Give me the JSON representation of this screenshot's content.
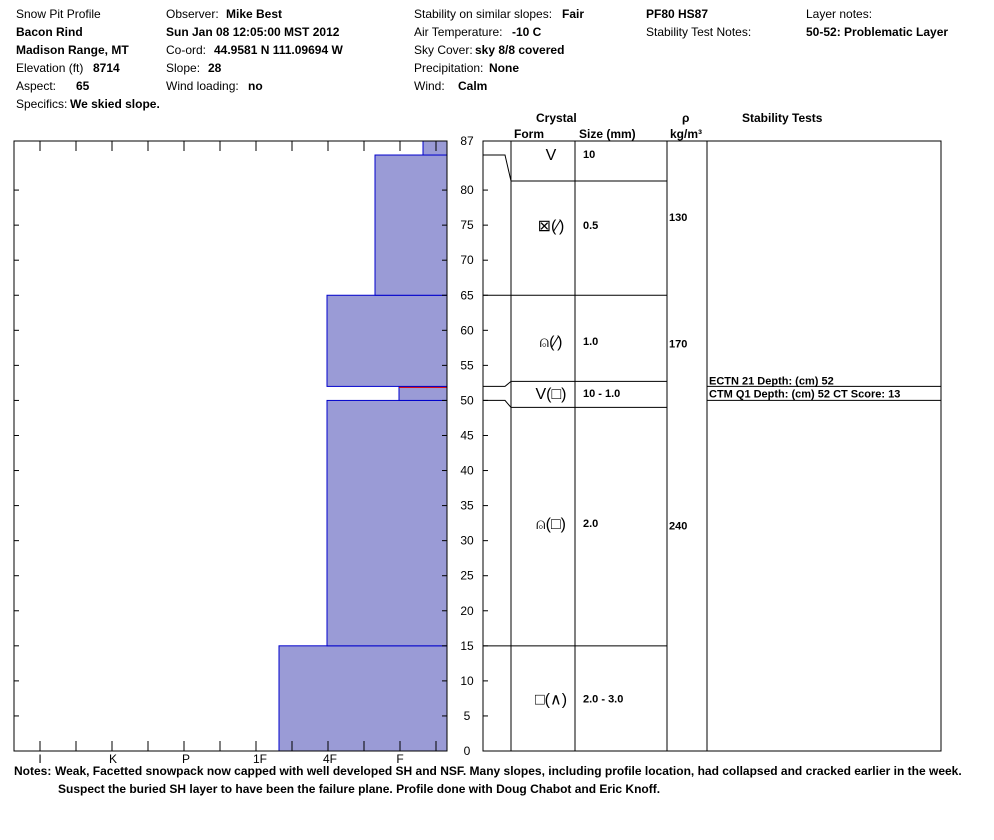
{
  "header": {
    "title": "Snow Pit Profile",
    "location": "Bacon Rind",
    "range": "Madison Range, MT",
    "elevation_label": "Elevation (ft)",
    "elevation": "8714",
    "aspect_label": "Aspect:",
    "aspect": "65",
    "specifics_label": "Specifics:",
    "specifics": "We skied slope.",
    "observer_label": "Observer:",
    "observer": "Mike Best",
    "date": "Sun Jan 08 12:05:00 MST 2012",
    "coord_label": "Co-ord:",
    "coord": "44.9581 N 111.09694 W",
    "slope_label": "Slope:",
    "slope": "28",
    "wind_loading_label": "Wind loading:",
    "wind_loading": "no",
    "stability_label": "Stability on similar slopes:",
    "stability": "Fair",
    "air_temp_label": "Air Temperature:",
    "air_temp": "-10 C",
    "sky_label": "Sky Cover:",
    "sky": "sky 8/8 covered",
    "precip_label": "Precipitation:",
    "precip": "None",
    "wind_label": "Wind:",
    "wind": "Calm",
    "pf_hs": "PF80 HS87",
    "stability_notes_label": "Stability Test Notes:",
    "layer_notes_label": "Layer notes:",
    "layer_notes": "50-52: Problematic Layer"
  },
  "columns": {
    "crystal": "Crystal",
    "form": "Form",
    "size": "Size (mm)",
    "rho": "ρ",
    "density_unit": "kg/m³",
    "stability_tests": "Stability Tests"
  },
  "chart_data": {
    "type": "bar",
    "subtype": "snow-pit-hardness-profile",
    "y_axis": "snow depth (cm)",
    "ylim": [
      0,
      87
    ],
    "y_ticks": [
      0,
      5,
      10,
      15,
      20,
      25,
      30,
      35,
      40,
      45,
      50,
      55,
      60,
      65,
      70,
      75,
      80,
      87
    ],
    "hardness_ticks": [
      "I",
      "K",
      "P",
      "1F",
      "4F",
      "F"
    ],
    "bar_color": "#9a9bd6",
    "edge_color": "#0000cc",
    "weak_layer_color": "#dd0000",
    "hardness_layers": [
      {
        "bottom": 0,
        "top": 15,
        "hardness": "1F"
      },
      {
        "bottom": 15,
        "top": 50,
        "hardness": "4F"
      },
      {
        "bottom": 50,
        "top": 52,
        "hardness": "F",
        "weak_layer": true
      },
      {
        "bottom": 52,
        "top": 65,
        "hardness": "4F"
      },
      {
        "bottom": 65,
        "top": 85,
        "hardness": "4F-F"
      },
      {
        "bottom": 85,
        "top": 87,
        "hardness": "F-"
      }
    ],
    "crystal_layers": [
      {
        "bottom": 85,
        "top": 87,
        "form": "V",
        "size": "10"
      },
      {
        "bottom": 65,
        "top": 85,
        "form": "⊠(⁄)",
        "size": "0.5",
        "density": "130"
      },
      {
        "bottom": 52,
        "top": 65,
        "form": "⍝(⁄)",
        "size": "1.0",
        "density": "170"
      },
      {
        "bottom": 50,
        "top": 52,
        "form": "V(□)",
        "size": "10 - 1.0"
      },
      {
        "bottom": 15,
        "top": 50,
        "form": "⍝(□)",
        "size": "2.0",
        "density": "240"
      },
      {
        "bottom": 0,
        "top": 15,
        "form": "□(∧)",
        "size": "2.0 - 3.0"
      }
    ],
    "stability_tests": [
      {
        "depth": 52,
        "text": "ECTN 21   Depth: (cm) 52"
      },
      {
        "depth": 50,
        "text": "CTM Q1 Depth: (cm) 52 CT Score: 13"
      }
    ]
  },
  "notes": {
    "label": "Notes:",
    "line1": "Weak, Facetted snowpack now capped with well developed SH and NSF. Many slopes, including profile location, had collapsed and cracked earlier in the week.",
    "line2": "Suspect the buried SH layer to have been the failure plane. Profile done with Doug Chabot and Eric Knoff."
  }
}
